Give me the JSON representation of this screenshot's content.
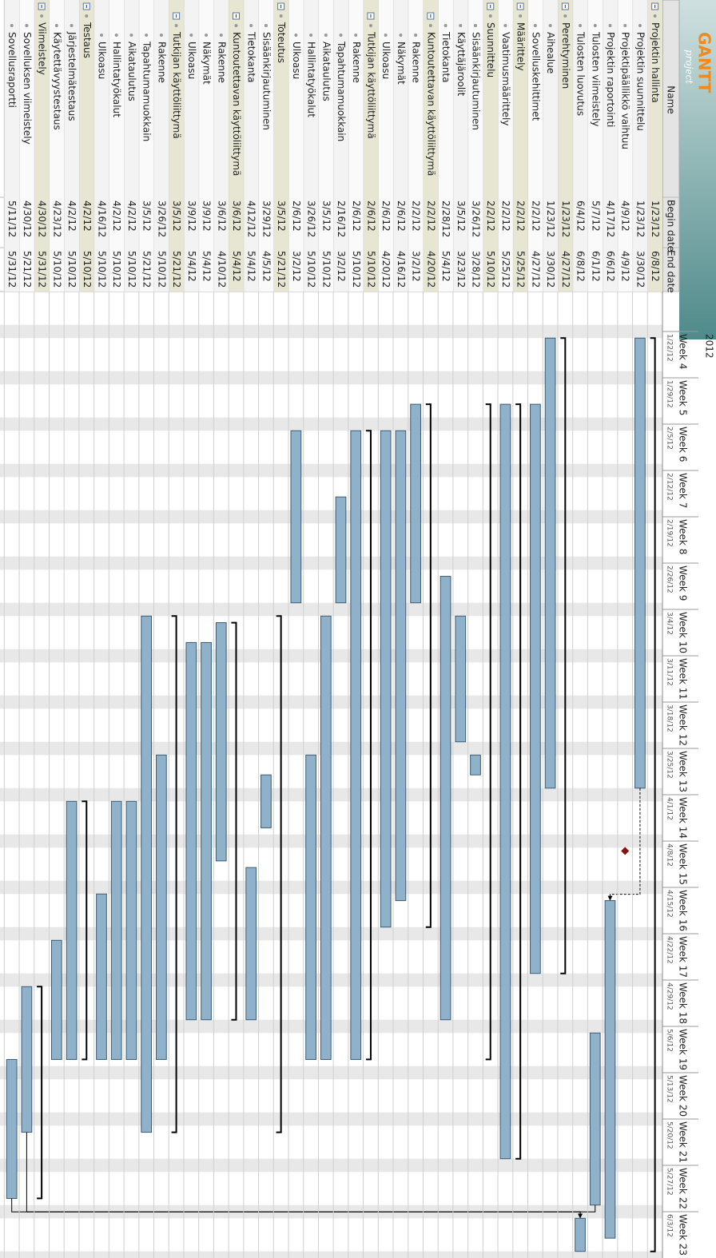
{
  "logo": {
    "title": "GANTT",
    "subtitle": "project"
  },
  "year": "2012",
  "columns": [
    "Name",
    "Begin date",
    "End date"
  ],
  "weeks": [
    {
      "label": "Week 4",
      "date": "1/22/12"
    },
    {
      "label": "Week 5",
      "date": "1/29/12"
    },
    {
      "label": "Week 6",
      "date": "2/5/12"
    },
    {
      "label": "Week 7",
      "date": "2/12/12"
    },
    {
      "label": "Week 8",
      "date": "2/19/12"
    },
    {
      "label": "Week 9",
      "date": "2/26/12"
    },
    {
      "label": "Week 10",
      "date": "3/4/12"
    },
    {
      "label": "Week 11",
      "date": "3/11/12"
    },
    {
      "label": "Week 12",
      "date": "3/18/12"
    },
    {
      "label": "Week 13",
      "date": "3/25/12"
    },
    {
      "label": "Week 14",
      "date": "4/1/12"
    },
    {
      "label": "Week 15",
      "date": "4/8/12"
    },
    {
      "label": "Week 16",
      "date": "4/15/12"
    },
    {
      "label": "Week 17",
      "date": "4/22/12"
    },
    {
      "label": "Week 18",
      "date": "4/29/12"
    },
    {
      "label": "Week 19",
      "date": "5/6/12"
    },
    {
      "label": "Week 20",
      "date": "5/13/12"
    },
    {
      "label": "Week 21",
      "date": "5/20/12"
    },
    {
      "label": "Week 22",
      "date": "5/27/12"
    },
    {
      "label": "Week 23",
      "date": "6/3/12"
    }
  ],
  "tasks": [
    {
      "name": "Projektin hallinta",
      "begin": "1/23/12",
      "end": "6/8/12",
      "kind": "group",
      "level": 0
    },
    {
      "name": "Projektin suunnittelu",
      "begin": "1/23/12",
      "end": "3/30/12",
      "kind": "task",
      "level": 1
    },
    {
      "name": "Projektipäällikkö vaihtuu",
      "begin": "4/9/12",
      "end": "4/9/12",
      "kind": "milestone",
      "level": 1
    },
    {
      "name": "Projektin raportointi",
      "begin": "4/17/12",
      "end": "6/6/12",
      "kind": "task",
      "level": 1
    },
    {
      "name": "Tulosten viimeistely",
      "begin": "5/7/12",
      "end": "6/1/12",
      "kind": "task",
      "level": 1
    },
    {
      "name": "Tulosten luovutus",
      "begin": "6/4/12",
      "end": "6/8/12",
      "kind": "task",
      "level": 1
    },
    {
      "name": "Perehtyminen",
      "begin": "1/23/12",
      "end": "4/27/12",
      "kind": "group",
      "level": 0
    },
    {
      "name": "Aihealue",
      "begin": "1/23/12",
      "end": "3/30/12",
      "kind": "task",
      "level": 1
    },
    {
      "name": "Sovelluskehittimet",
      "begin": "2/2/12",
      "end": "4/27/12",
      "kind": "task",
      "level": 1
    },
    {
      "name": "Määrittely",
      "begin": "2/2/12",
      "end": "5/25/12",
      "kind": "group",
      "level": 0
    },
    {
      "name": "Vaatimusmäärittely",
      "begin": "2/2/12",
      "end": "5/25/12",
      "kind": "task",
      "level": 1
    },
    {
      "name": "Suunnittelu",
      "begin": "2/2/12",
      "end": "5/10/12",
      "kind": "group",
      "level": 0
    },
    {
      "name": "Sisäänkirjautuminen",
      "begin": "3/26/12",
      "end": "3/28/12",
      "kind": "task",
      "level": 1
    },
    {
      "name": "Käyttäjäroolit",
      "begin": "3/5/12",
      "end": "3/23/12",
      "kind": "task",
      "level": 1
    },
    {
      "name": "Tietokanta",
      "begin": "2/28/12",
      "end": "5/4/12",
      "kind": "task",
      "level": 1
    },
    {
      "name": "Kuntoutettavan käyttöliittymä",
      "begin": "2/2/12",
      "end": "4/20/12",
      "kind": "group",
      "level": 1
    },
    {
      "name": "Rakenne",
      "begin": "2/2/12",
      "end": "3/2/12",
      "kind": "task",
      "level": 2
    },
    {
      "name": "Näkymät",
      "begin": "2/6/12",
      "end": "4/16/12",
      "kind": "task",
      "level": 2
    },
    {
      "name": "Ulkoasu",
      "begin": "2/6/12",
      "end": "4/20/12",
      "kind": "task",
      "level": 2
    },
    {
      "name": "Tutkijan käyttöliittymä",
      "begin": "2/6/12",
      "end": "5/10/12",
      "kind": "group",
      "level": 1
    },
    {
      "name": "Rakenne",
      "begin": "2/6/12",
      "end": "5/10/12",
      "kind": "task",
      "level": 2
    },
    {
      "name": "Tapahtumamuokkain",
      "begin": "2/16/12",
      "end": "3/2/12",
      "kind": "task",
      "level": 2
    },
    {
      "name": "Aikataulutus",
      "begin": "3/5/12",
      "end": "5/10/12",
      "kind": "task",
      "level": 2
    },
    {
      "name": "Hallintatyökalut",
      "begin": "3/26/12",
      "end": "5/10/12",
      "kind": "task",
      "level": 2
    },
    {
      "name": "Ulkoasu",
      "begin": "2/6/12",
      "end": "3/2/12",
      "kind": "task",
      "level": 2
    },
    {
      "name": "Toteutus",
      "begin": "3/5/12",
      "end": "5/21/12",
      "kind": "group",
      "level": 0
    },
    {
      "name": "Sisäänkirjautuminen",
      "begin": "3/29/12",
      "end": "4/5/12",
      "kind": "task",
      "level": 1
    },
    {
      "name": "Tietokanta",
      "begin": "4/12/12",
      "end": "5/4/12",
      "kind": "task",
      "level": 1
    },
    {
      "name": "Kuntoutettavan käyttöliittymä",
      "begin": "3/6/12",
      "end": "5/4/12",
      "kind": "group",
      "level": 1
    },
    {
      "name": "Rakenne",
      "begin": "3/6/12",
      "end": "4/10/12",
      "kind": "task",
      "level": 2
    },
    {
      "name": "Näkymät",
      "begin": "3/9/12",
      "end": "5/4/12",
      "kind": "task",
      "level": 2
    },
    {
      "name": "Ulkoasu",
      "begin": "3/9/12",
      "end": "5/4/12",
      "kind": "task",
      "level": 2
    },
    {
      "name": "Tutkijan käyttöliittymä",
      "begin": "3/5/12",
      "end": "5/21/12",
      "kind": "group",
      "level": 1
    },
    {
      "name": "Rakenne",
      "begin": "3/26/12",
      "end": "5/10/12",
      "kind": "task",
      "level": 2
    },
    {
      "name": "Tapahtumamuokkain",
      "begin": "3/5/12",
      "end": "5/21/12",
      "kind": "task",
      "level": 2
    },
    {
      "name": "Aikataulutus",
      "begin": "4/2/12",
      "end": "5/10/12",
      "kind": "task",
      "level": 2
    },
    {
      "name": "Hallintatyökalut",
      "begin": "4/2/12",
      "end": "5/10/12",
      "kind": "task",
      "level": 2
    },
    {
      "name": "Ulkoasu",
      "begin": "4/16/12",
      "end": "5/10/12",
      "kind": "task",
      "level": 2
    },
    {
      "name": "Testaus",
      "begin": "4/2/12",
      "end": "5/10/12",
      "kind": "group",
      "level": 0
    },
    {
      "name": "Järjestelmätestaus",
      "begin": "4/2/12",
      "end": "5/10/12",
      "kind": "task",
      "level": 1
    },
    {
      "name": "Käytettävyystestaus",
      "begin": "4/23/12",
      "end": "5/10/12",
      "kind": "task",
      "level": 1
    },
    {
      "name": "Viimeistely",
      "begin": "4/30/12",
      "end": "5/31/12",
      "kind": "group",
      "level": 0
    },
    {
      "name": "Sovelluksen viimeistely",
      "begin": "4/30/12",
      "end": "5/21/12",
      "kind": "task",
      "level": 1
    },
    {
      "name": "Sovellusraportti",
      "begin": "5/11/12",
      "end": "5/31/12",
      "kind": "task",
      "level": 1
    }
  ]
}
